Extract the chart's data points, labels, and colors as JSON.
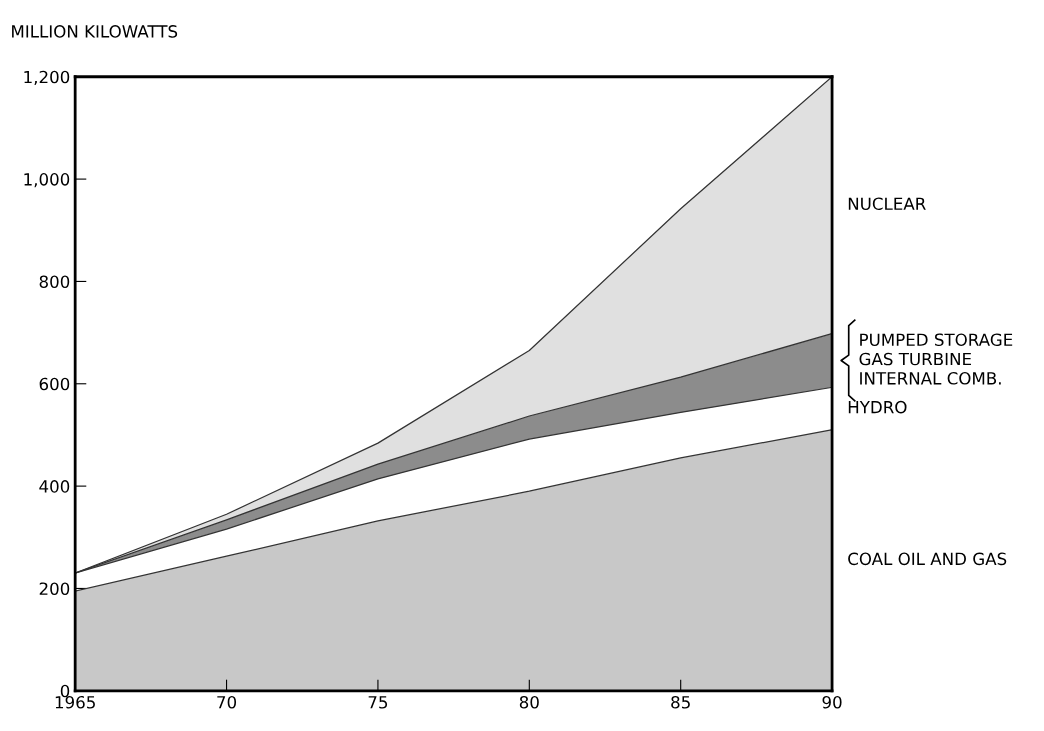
{
  "chart_data": {
    "type": "area",
    "stacked": true,
    "ylabel": "MILLION KILOWATTS",
    "x": [
      1965,
      1970,
      1975,
      1980,
      1985,
      1990
    ],
    "series": [
      {
        "name": "COAL OIL AND GAS",
        "color": "#c8c8c8",
        "values": [
          195,
          263,
          332,
          390,
          455,
          510
        ]
      },
      {
        "name": "HYDRO",
        "color": "#ffffff",
        "values": [
          35,
          53,
          82,
          102,
          89,
          83
        ]
      },
      {
        "name": "PUMPED STORAGE\nGAS TURBINE\nINTERNAL COMB.",
        "color": "#8c8c8c",
        "values": [
          0,
          18,
          29,
          45,
          69,
          105
        ]
      },
      {
        "name": "NUCLEAR",
        "color": "#e0e0e0",
        "values": [
          0,
          11,
          41,
          128,
          329,
          502
        ]
      }
    ],
    "xlim": [
      1965,
      1990
    ],
    "xticks": [
      1965,
      {
        "value": 1970,
        "label": "70"
      },
      {
        "value": 1975,
        "label": "75"
      },
      {
        "value": 1980,
        "label": "80"
      },
      {
        "value": 1985,
        "label": "85"
      },
      {
        "value": 1990,
        "label": "90"
      }
    ],
    "ylim": [
      0,
      1200
    ],
    "yticks": [
      0,
      200,
      400,
      600,
      800,
      {
        "value": 1000,
        "label": "1,000"
      },
      {
        "value": 1200,
        "label": "1,200"
      }
    ],
    "grid": false,
    "legend": false
  }
}
